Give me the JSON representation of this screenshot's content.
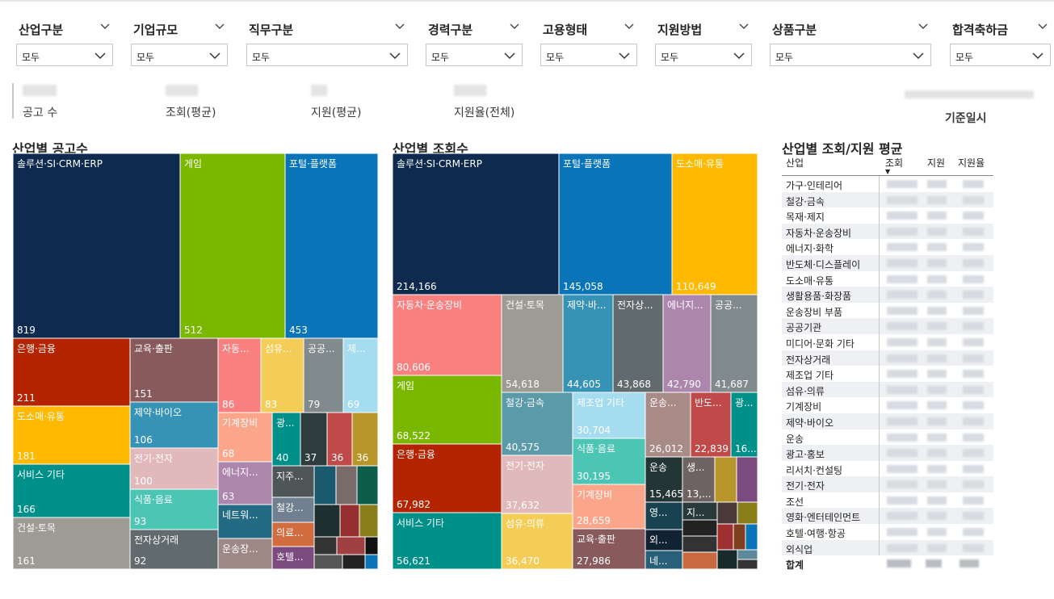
{
  "filters": [
    {
      "label": "산업구분",
      "value": "모두"
    },
    {
      "label": "기업규모",
      "value": "모두"
    },
    {
      "label": "직무구분",
      "value": "모두"
    },
    {
      "label": "경력구분",
      "value": "모두"
    },
    {
      "label": "고용형태",
      "value": "모두"
    },
    {
      "label": "지원방법",
      "value": "모두"
    },
    {
      "label": "상품구분",
      "value": "모두"
    },
    {
      "label": "합격축하금",
      "value": "모두"
    }
  ],
  "kpis": [
    {
      "label": "공고 수"
    },
    {
      "label": "조회(평균)"
    },
    {
      "label": "지원(평균)"
    },
    {
      "label": "지원율(전체)"
    }
  ],
  "base_date": {
    "label": "기준일시"
  },
  "chart_data": [
    {
      "type": "treemap",
      "title": "산업별 공고수",
      "items": [
        {
          "name": "솔루션·SI·CRM·ERP",
          "value": 819
        },
        {
          "name": "게임",
          "value": 512
        },
        {
          "name": "포털·플랫폼",
          "value": 453
        },
        {
          "name": "은행·금융",
          "value": 211
        },
        {
          "name": "도소매·유통",
          "value": 181
        },
        {
          "name": "서비스 기타",
          "value": 166
        },
        {
          "name": "건설·토목",
          "value": 161
        },
        {
          "name": "교육·출판",
          "value": 151
        },
        {
          "name": "제약·바이오",
          "value": 106
        },
        {
          "name": "전기·전자",
          "value": 100
        },
        {
          "name": "식품·음료",
          "value": 93
        },
        {
          "name": "전자상거래",
          "value": 92
        },
        {
          "name": "자동...",
          "value": 86
        },
        {
          "name": "섬유...",
          "value": 83
        },
        {
          "name": "공공...",
          "value": 79
        },
        {
          "name": "제...",
          "value": 69
        },
        {
          "name": "기계장비",
          "value": 68
        },
        {
          "name": "에너지...",
          "value": 63
        },
        {
          "name": "광...",
          "value": 40
        },
        {
          "name": "",
          "value": 37
        },
        {
          "name": "",
          "value": 36
        },
        {
          "name": "",
          "value": 36
        },
        {
          "name": "네트워...",
          "value": null
        },
        {
          "name": "운송장...",
          "value": null
        },
        {
          "name": "지주...",
          "value": null
        },
        {
          "name": "철강...",
          "value": null
        },
        {
          "name": "의료...",
          "value": null
        },
        {
          "name": "호텔...",
          "value": null
        }
      ]
    },
    {
      "type": "treemap",
      "title": "산업별 조회수",
      "items": [
        {
          "name": "솔루션·SI·CRM·ERP",
          "value": 214166
        },
        {
          "name": "포털·플랫폼",
          "value": 145058
        },
        {
          "name": "도소매·유통",
          "value": 110649
        },
        {
          "name": "자동차·운송장비",
          "value": 80606
        },
        {
          "name": "게임",
          "value": 68522
        },
        {
          "name": "은행·금융",
          "value": 67982
        },
        {
          "name": "서비스 기타",
          "value": 56621
        },
        {
          "name": "건설·토목",
          "value": 54618
        },
        {
          "name": "제약·바...",
          "value": 44605
        },
        {
          "name": "전자상...",
          "value": 43868
        },
        {
          "name": "에너지...",
          "value": 42790
        },
        {
          "name": "공공...",
          "value": 41687
        },
        {
          "name": "철강·금속",
          "value": 40575
        },
        {
          "name": "전기·전자",
          "value": 37632
        },
        {
          "name": "섬유·의류",
          "value": 36470
        },
        {
          "name": "제조업 기타",
          "value": 30704
        },
        {
          "name": "식품·음료",
          "value": 30195
        },
        {
          "name": "기계장비",
          "value": 28659
        },
        {
          "name": "교육·출판",
          "value": 27986
        },
        {
          "name": "운송...",
          "value": 26012
        },
        {
          "name": "반도...",
          "value": 22839
        },
        {
          "name": "광...",
          "value": null
        },
        {
          "name": "운송",
          "value": 15465
        },
        {
          "name": "생...",
          "value": 13000
        },
        {
          "name": "영...",
          "value": null
        },
        {
          "name": "지...",
          "value": null
        },
        {
          "name": "외...",
          "value": null
        },
        {
          "name": "네...",
          "value": null
        }
      ],
      "value_labels": {
        "광...": "16...",
        "생...": "13,..."
      }
    },
    {
      "type": "table",
      "title": "산업별 조회/지원 평균",
      "columns": [
        "산업",
        "조회",
        "지원",
        "지원율"
      ],
      "sort_column": "조회",
      "rows": [
        "가구·인테리어",
        "철강·금속",
        "목재·제지",
        "자동차·운송장비",
        "에너지·화학",
        "반도체·디스플레이",
        "도소매·유통",
        "생활용품·화장품",
        "운송장비 부품",
        "공공기관",
        "미디어·문화 기타",
        "전자상거래",
        "제조업 기타",
        "섬유·의류",
        "기계장비",
        "제약·바이오",
        "운송",
        "광고·홍보",
        "리서치·컨설팅",
        "전기·전자",
        "조선",
        "영화·엔터테인먼트",
        "호텔·여행·항공",
        "외식업"
      ],
      "total_label": "합계"
    }
  ],
  "colors": {
    "navy": "#0e2b4f",
    "green": "#7ab800",
    "blue": "#0a74b8",
    "red": "#b42400",
    "yellow": "#ffb900",
    "teal": "#00908a",
    "gray": "#9e9a94",
    "mauve": "#895a5c",
    "steel": "#3793b6",
    "pink": "#e2b9bb",
    "mint": "#4cc5b5",
    "slate": "#616a6d",
    "salmon": "#fa8080",
    "gold": "#f4cd57",
    "grey2": "#818a8c",
    "sky": "#a6dcef",
    "peach": "#fba68b",
    "lilac": "#ad86ad"
  }
}
